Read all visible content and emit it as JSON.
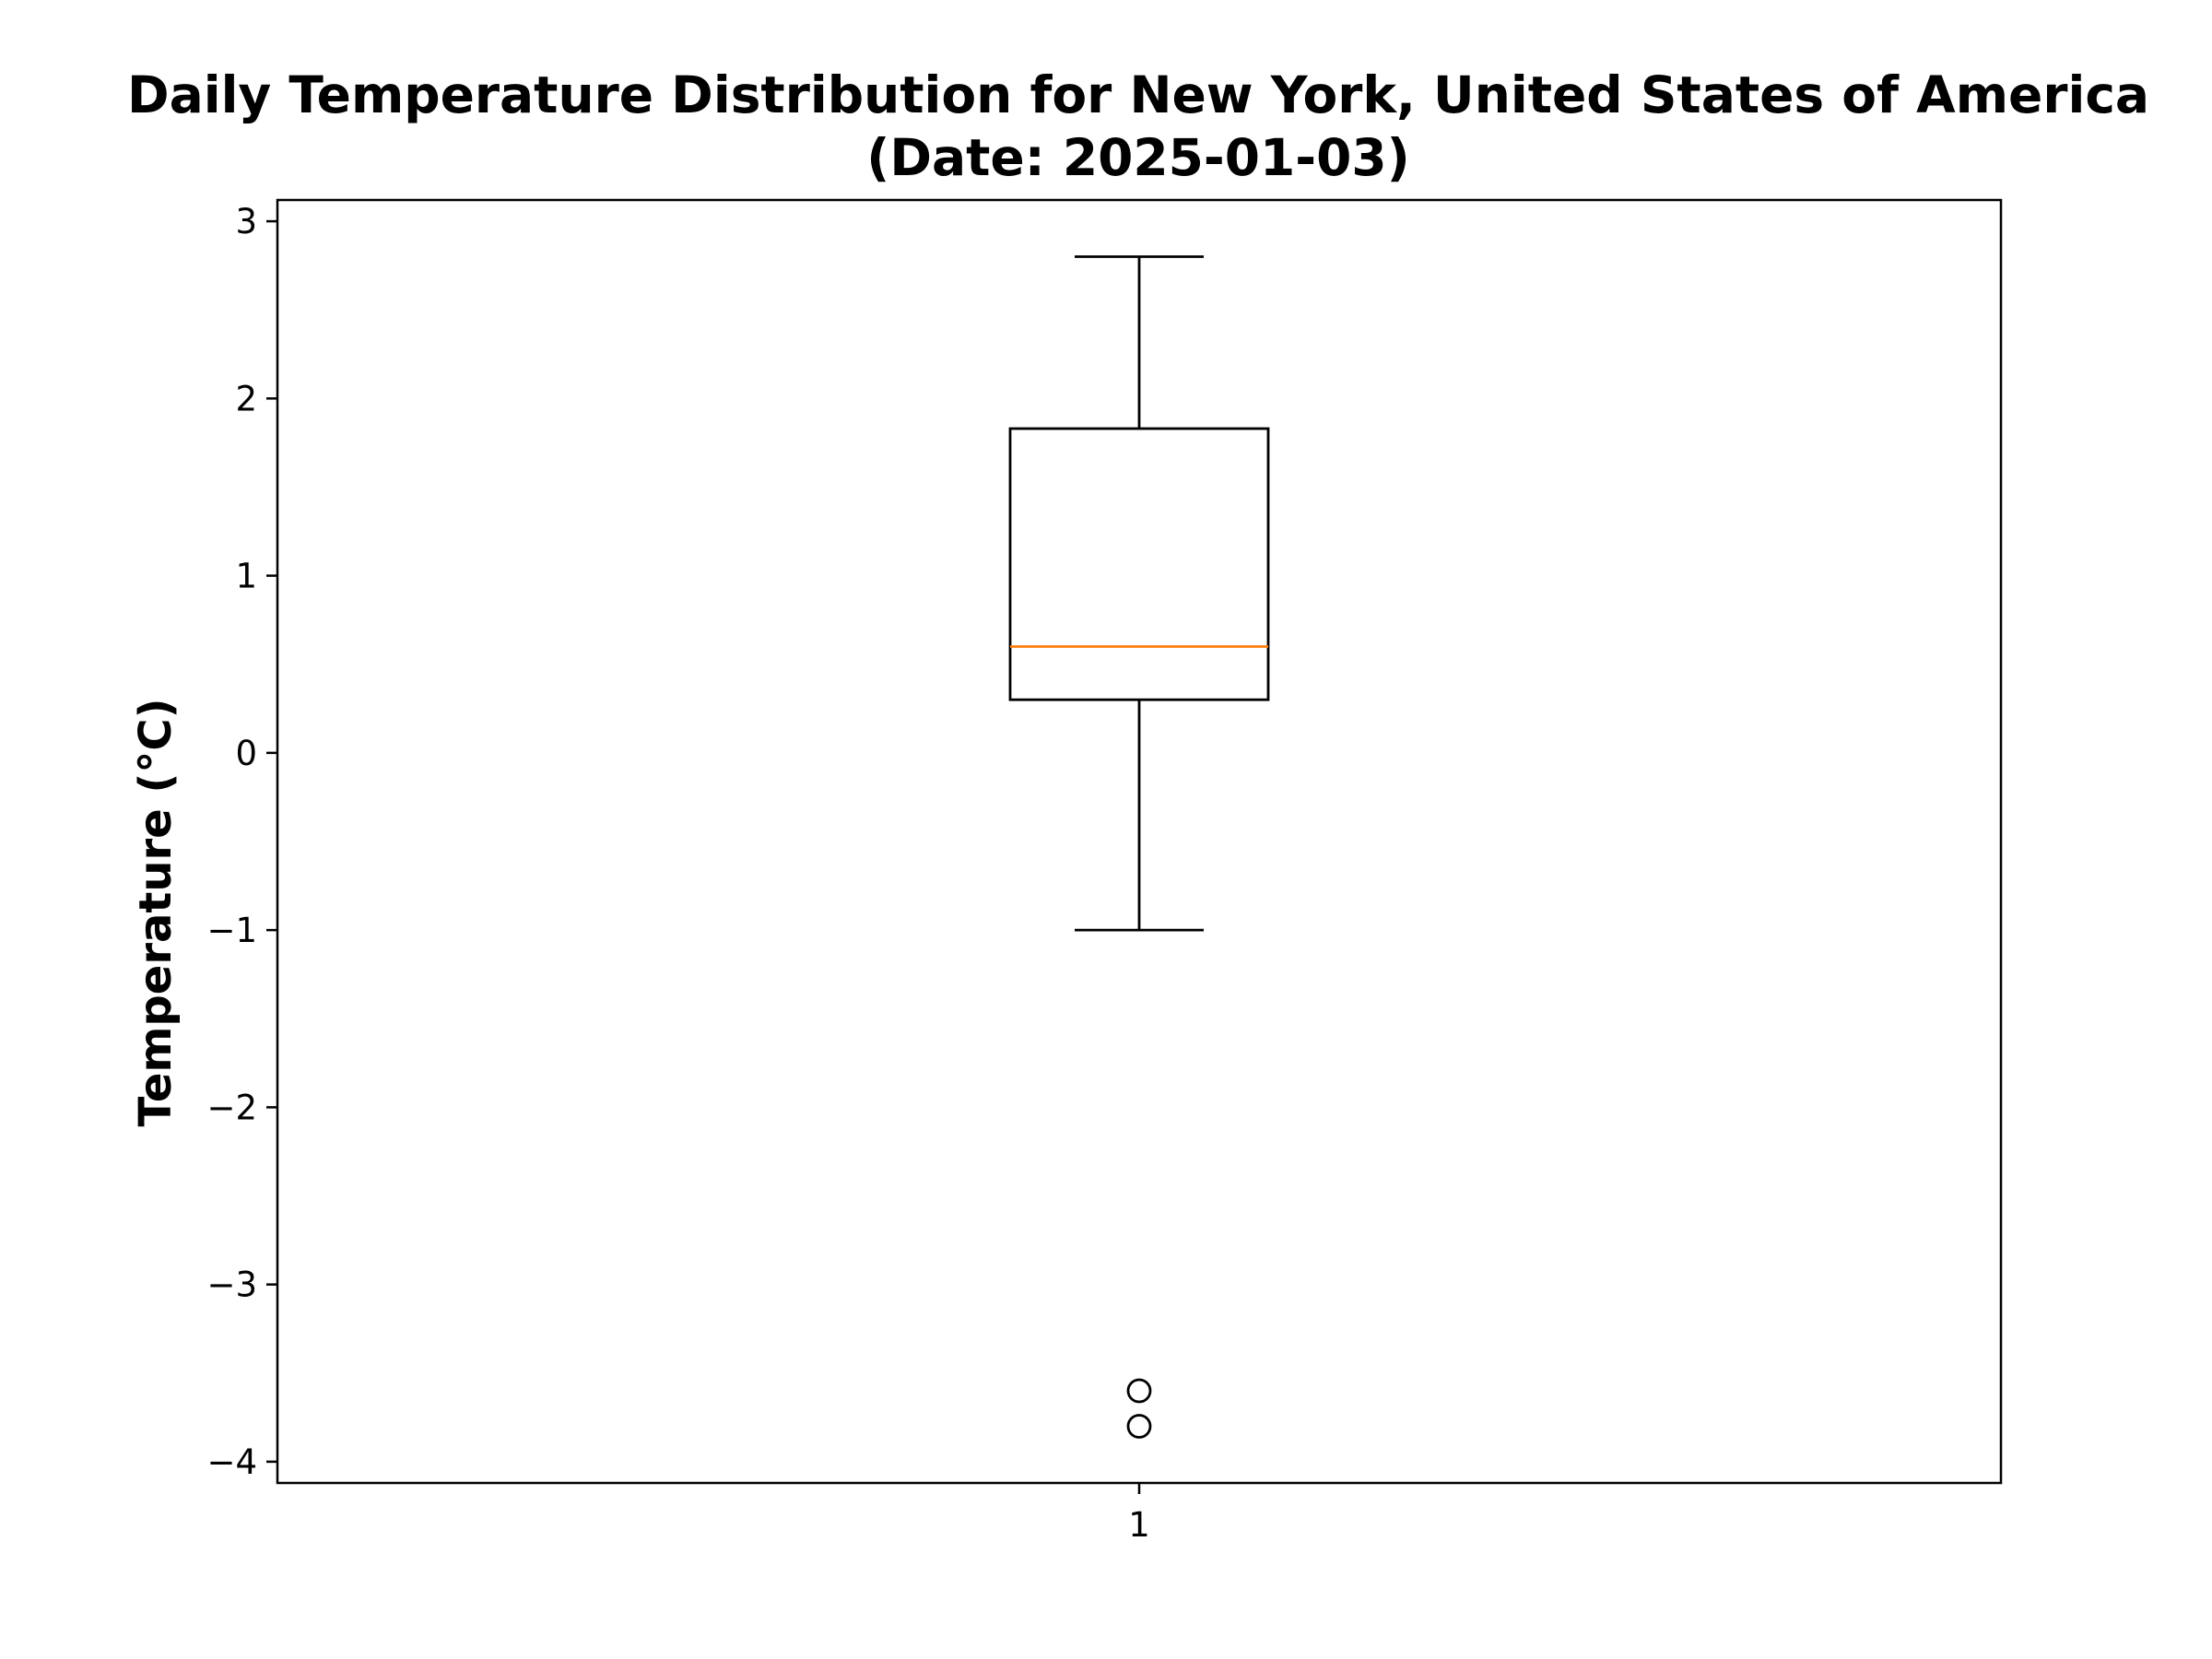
{
  "chart_data": {
    "type": "box",
    "title": "Daily Temperature Distribution for New York, United States of America",
    "subtitle": "(Date: 2025-01-03)",
    "ylabel": "Temperature (°C)",
    "xlabel": "",
    "categories": [
      "1"
    ],
    "ylim": [
      -4.12,
      3.12
    ],
    "yticks": [
      3,
      2,
      1,
      0,
      -1,
      -2,
      -3,
      -4
    ],
    "ytick_labels": [
      "3",
      "2",
      "1",
      "0",
      "−1",
      "−2",
      "−3",
      "−4"
    ],
    "boxes": [
      {
        "category": "1",
        "whisker_low": -1.0,
        "q1": 0.3,
        "median": 0.6,
        "q3": 1.83,
        "whisker_high": 2.8,
        "outliers": [
          -3.6,
          -3.8
        ]
      }
    ],
    "grid": false,
    "colors": {
      "box": "#000000",
      "median": "#ff7f0e",
      "outlier": "#000000"
    }
  }
}
